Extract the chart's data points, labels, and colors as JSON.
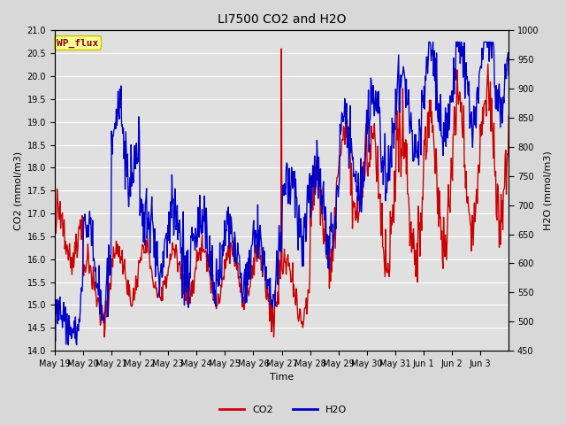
{
  "title": "LI7500 CO2 and H2O",
  "xlabel": "Time",
  "ylabel_left": "CO2 (mmol/m3)",
  "ylabel_right": "H2O (mmol/m3)",
  "ylim_left": [
    14.0,
    21.0
  ],
  "ylim_right": [
    450,
    1000
  ],
  "co2_color": "#cc0000",
  "h2o_color": "#0000cc",
  "fig_bg_color": "#d8d8d8",
  "plot_bg_color": "#e0e0e0",
  "annotation_text": "WP_flux",
  "annotation_fg": "#8b0000",
  "annotation_bg": "#ffff99",
  "annotation_border": "#cccc00",
  "legend_co2": "CO2",
  "legend_h2o": "H2O",
  "tick_labels": [
    "May 19",
    "May 20",
    "May 21",
    "May 22",
    "May 23",
    "May 24",
    "May 25",
    "May 26",
    "May 27",
    "May 28",
    "May 29",
    "May 30",
    "May 31",
    "Jun 1",
    "Jun 2",
    "Jun 3"
  ],
  "linewidth": 1.0,
  "title_fontsize": 10,
  "label_fontsize": 8,
  "tick_fontsize": 7,
  "legend_fontsize": 8
}
